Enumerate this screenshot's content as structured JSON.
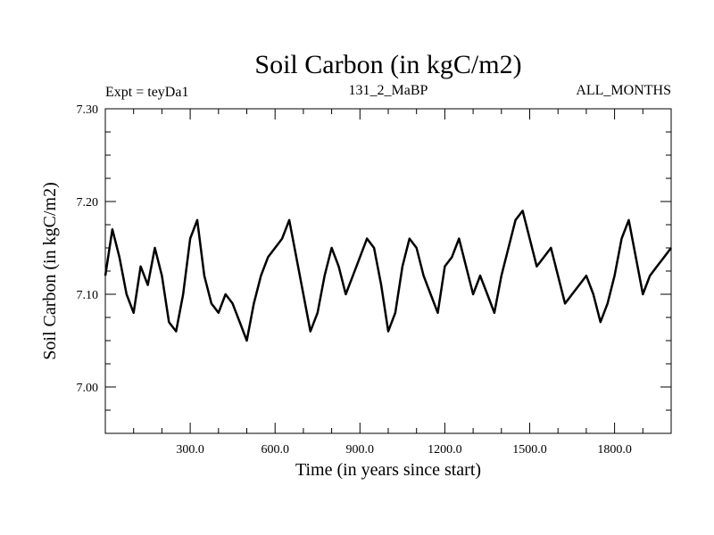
{
  "chart_data": {
    "type": "line",
    "title": "Soil Carbon (in kgC/m2)",
    "subtitle_left": "Expt = teyDa1",
    "subtitle_center": "131_2_MaBP",
    "subtitle_right": "ALL_MONTHS",
    "xlabel": "Time (in years since start)",
    "ylabel": "Soil Carbon (in kgC/m2)",
    "xlim": [
      0,
      2000
    ],
    "ylim": [
      6.95,
      7.3
    ],
    "xticks": [
      300,
      600,
      900,
      1200,
      1500,
      1800
    ],
    "xtick_labels": [
      "300.0",
      "600.0",
      "900.0",
      "1200.0",
      "1500.0",
      "1800.0"
    ],
    "yticks": [
      7.0,
      7.1,
      7.2,
      7.3
    ],
    "ytick_labels": [
      "7.00",
      "7.10",
      "7.20",
      "7.30"
    ],
    "grid": false,
    "line_color": "#000000",
    "series": [
      {
        "x": [
          0,
          25,
          50,
          75,
          100,
          125,
          150,
          175,
          200,
          225,
          250,
          275,
          300,
          325,
          350,
          375,
          400,
          425,
          450,
          475,
          500,
          525,
          550,
          575,
          600,
          625,
          650,
          675,
          700,
          725,
          750,
          775,
          800,
          825,
          850,
          875,
          900,
          925,
          950,
          975,
          1000,
          1025,
          1050,
          1075,
          1100,
          1125,
          1150,
          1175,
          1200,
          1225,
          1250,
          1275,
          1300,
          1325,
          1350,
          1375,
          1400,
          1425,
          1450,
          1475,
          1500,
          1525,
          1550,
          1575,
          1600,
          1625,
          1650,
          1675,
          1700,
          1725,
          1750,
          1775,
          1800,
          1825,
          1850,
          1875,
          1900,
          1925,
          1950,
          1975,
          2000
        ],
        "y": [
          7.12,
          7.17,
          7.14,
          7.1,
          7.08,
          7.13,
          7.11,
          7.15,
          7.12,
          7.07,
          7.06,
          7.1,
          7.16,
          7.18,
          7.12,
          7.09,
          7.08,
          7.1,
          7.09,
          7.07,
          7.05,
          7.09,
          7.12,
          7.14,
          7.15,
          7.16,
          7.18,
          7.14,
          7.1,
          7.06,
          7.08,
          7.12,
          7.15,
          7.13,
          7.1,
          7.12,
          7.14,
          7.16,
          7.15,
          7.11,
          7.06,
          7.08,
          7.13,
          7.16,
          7.15,
          7.12,
          7.1,
          7.08,
          7.13,
          7.14,
          7.16,
          7.13,
          7.1,
          7.12,
          7.1,
          7.08,
          7.12,
          7.15,
          7.18,
          7.19,
          7.16,
          7.13,
          7.14,
          7.15,
          7.12,
          7.09,
          7.1,
          7.11,
          7.12,
          7.1,
          7.07,
          7.09,
          7.12,
          7.16,
          7.18,
          7.14,
          7.1,
          7.12,
          7.13,
          7.14,
          7.15
        ]
      }
    ]
  }
}
